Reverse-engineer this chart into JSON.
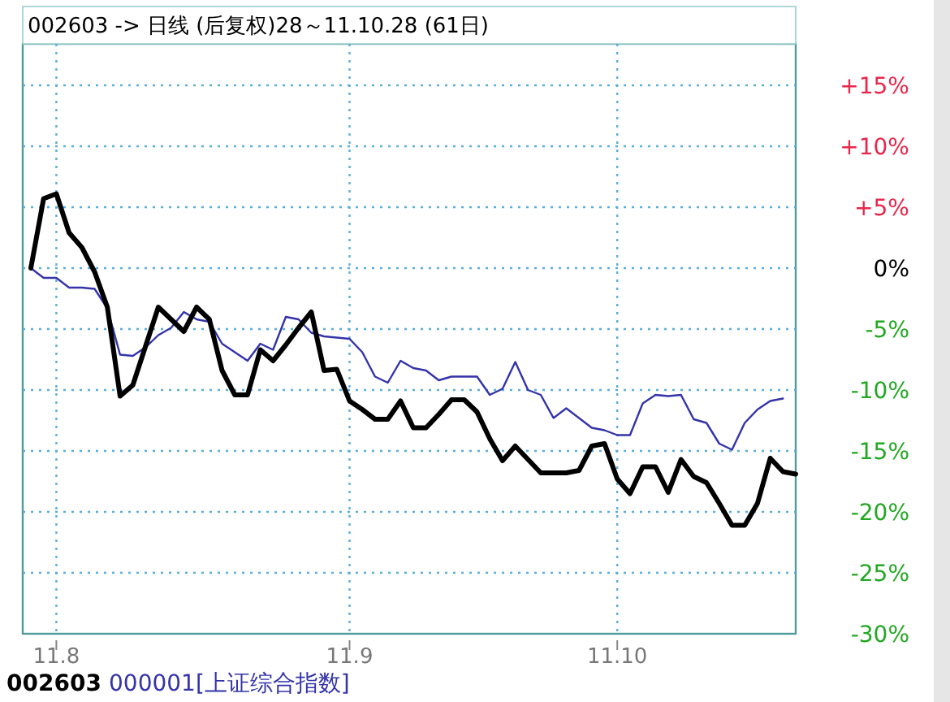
{
  "chart_data": {
    "type": "line",
    "title": "002603 -> 日线 (后复权)28～11.10.28 (61日)",
    "categories": [
      null,
      null,
      "11.8",
      null,
      null,
      null,
      null,
      null,
      null,
      null,
      null,
      null,
      null,
      null,
      null,
      null,
      null,
      null,
      null,
      null,
      null,
      null,
      null,
      null,
      null,
      "11.9",
      null,
      null,
      null,
      null,
      null,
      null,
      null,
      null,
      null,
      null,
      null,
      null,
      null,
      null,
      null,
      null,
      null,
      null,
      null,
      null,
      "11.10",
      null,
      null,
      null,
      null,
      null,
      null,
      null,
      null,
      null,
      null,
      null,
      null,
      null,
      null
    ],
    "ylim": [
      -30,
      18.4
    ],
    "yticks": [
      {
        "value": 15,
        "label": "+15%"
      },
      {
        "value": 10,
        "label": "+10%"
      },
      {
        "value": 5,
        "label": "+5%"
      },
      {
        "value": 0,
        "label": "0%"
      },
      {
        "value": -5,
        "label": "-5%"
      },
      {
        "value": -10,
        "label": "-10%"
      },
      {
        "value": -15,
        "label": "-15%"
      },
      {
        "value": -20,
        "label": "-20%"
      },
      {
        "value": -25,
        "label": "-25%"
      },
      {
        "value": -30,
        "label": "-30%"
      }
    ],
    "grid": true,
    "legend": "bottom",
    "line_style": "solid",
    "series": [
      {
        "name": "002603",
        "color": "#000000",
        "values": [
          0,
          5.7,
          6.1,
          2.9,
          1.7,
          -0.3,
          -3.2,
          -10.5,
          -9.6,
          -6.4,
          -3.2,
          -4.2,
          -5.2,
          -3.2,
          -4.2,
          -8.4,
          -10.4,
          -10.4,
          -6.7,
          -7.6,
          -6.3,
          -4.9,
          -3.6,
          -8.4,
          -8.3,
          -10.9,
          -11.6,
          -12.4,
          -12.4,
          -10.9,
          -13.1,
          -13.1,
          -12,
          -10.8,
          -10.8,
          -11.8,
          -14,
          -15.8,
          -14.6,
          -15.7,
          -16.8,
          -16.8,
          -16.8,
          -16.6,
          -14.6,
          -14.4,
          -17.3,
          -18.5,
          -16.3,
          -16.3,
          -18.4,
          -15.7,
          -17.1,
          -17.6,
          -19.3,
          -21.1,
          -21.1,
          -19.3,
          -15.6,
          -16.7,
          -16.9
        ]
      },
      {
        "name": "000001[上证综合指数]",
        "color": "#3333aa",
        "values": [
          0,
          -0.8,
          -0.8,
          -1.6,
          -1.6,
          -1.7,
          -3.3,
          -7.1,
          -7.2,
          -6.5,
          -5.5,
          -4.9,
          -3.6,
          -4.2,
          -4.4,
          -6.2,
          -6.9,
          -7.6,
          -6.2,
          -6.7,
          -4,
          -4.2,
          -5.3,
          -5.6,
          -5.7,
          -5.8,
          -6.9,
          -8.9,
          -9.4,
          -7.6,
          -8.2,
          -8.4,
          -9.2,
          -8.9,
          -8.9,
          -8.9,
          -10.4,
          -9.9,
          -7.7,
          -10,
          -10.4,
          -12.3,
          -11.5,
          -12.3,
          -13.1,
          -13.3,
          -13.7,
          -13.7,
          -11.1,
          -10.4,
          -10.5,
          -10.4,
          -12.4,
          -12.7,
          -14.4,
          -14.9,
          -12.7,
          -11.6,
          -10.9,
          -10.7,
          null
        ]
      }
    ]
  }
}
